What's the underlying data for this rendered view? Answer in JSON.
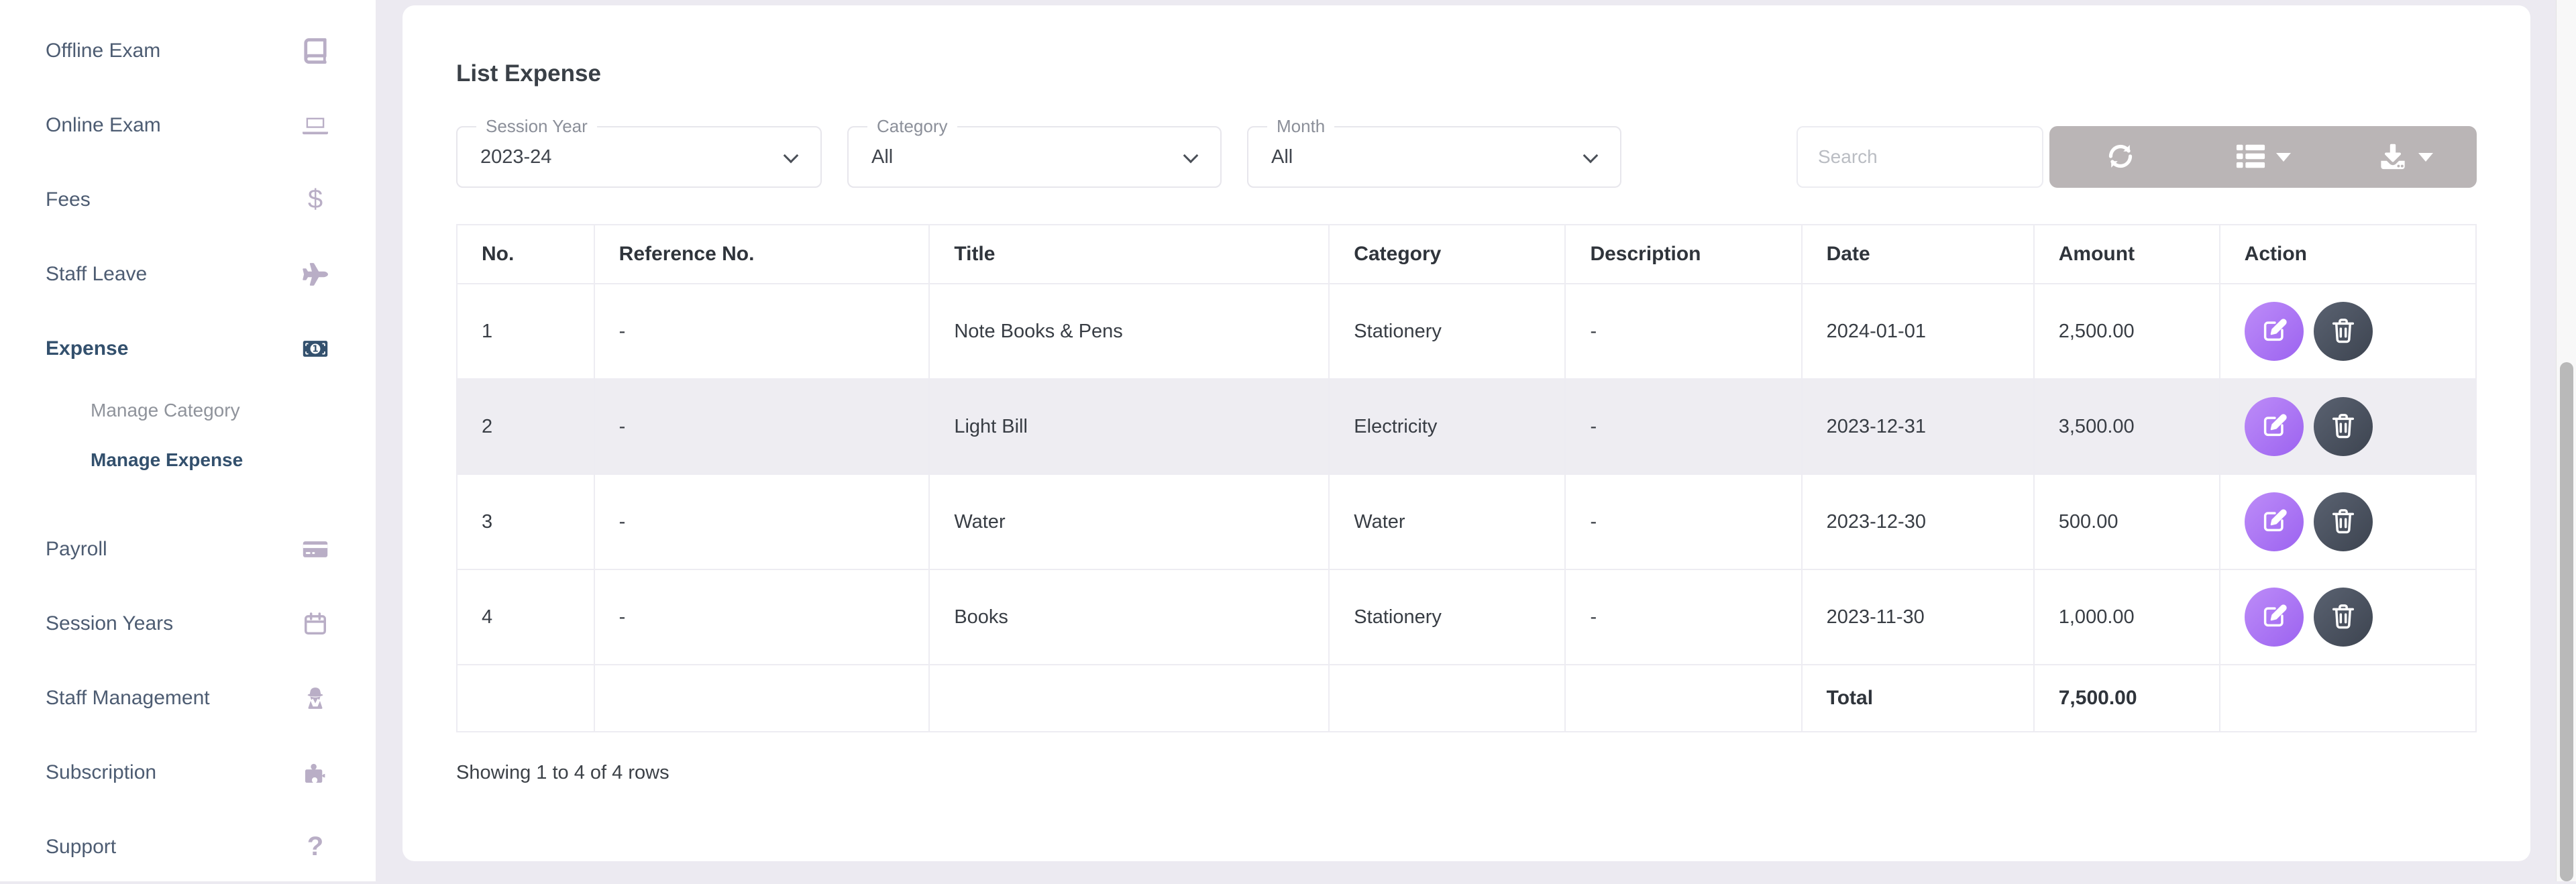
{
  "sidebar": {
    "items": [
      {
        "label": "Offline Exam",
        "icon": "book-icon",
        "active": false
      },
      {
        "label": "Online Exam",
        "icon": "laptop-icon",
        "active": false
      },
      {
        "label": "Fees",
        "icon": "dollar-icon",
        "active": false
      },
      {
        "label": "Staff Leave",
        "icon": "plane-icon",
        "active": false
      },
      {
        "label": "Expense",
        "icon": "money-bill-icon",
        "active": true,
        "children": [
          {
            "label": "Manage Category",
            "active": false
          },
          {
            "label": "Manage Expense",
            "active": true
          }
        ]
      },
      {
        "label": "Payroll",
        "icon": "credit-card-icon",
        "active": false
      },
      {
        "label": "Session Years",
        "icon": "calendar-icon",
        "active": false
      },
      {
        "label": "Staff Management",
        "icon": "user-secret-icon",
        "active": false
      },
      {
        "label": "Subscription",
        "icon": "puzzle-icon",
        "active": false
      },
      {
        "label": "Support",
        "icon": "question-icon",
        "active": false
      }
    ]
  },
  "main": {
    "title": "List Expense",
    "filters": [
      {
        "label": "Session Year",
        "value": "2023-24"
      },
      {
        "label": "Category",
        "value": "All"
      },
      {
        "label": "Month",
        "value": "All"
      }
    ],
    "search": {
      "placeholder": "Search"
    },
    "toolbar": [
      {
        "name": "refresh-button",
        "icon": "refresh-icon",
        "has_caret": false
      },
      {
        "name": "columns-button",
        "icon": "columns-icon",
        "has_caret": true
      },
      {
        "name": "export-button",
        "icon": "download-icon",
        "has_caret": true
      }
    ],
    "table": {
      "columns": [
        "No.",
        "Reference No.",
        "Title",
        "Category",
        "Description",
        "Date",
        "Amount",
        "Action"
      ],
      "rows": [
        {
          "no": "1",
          "reference": "-",
          "title": "Note Books & Pens",
          "category": "Stationery",
          "description": "-",
          "date": "2024-01-01",
          "amount": "2,500.00",
          "striped": false
        },
        {
          "no": "2",
          "reference": "-",
          "title": "Light Bill",
          "category": "Electricity",
          "description": "-",
          "date": "2023-12-31",
          "amount": "3,500.00",
          "striped": true
        },
        {
          "no": "3",
          "reference": "-",
          "title": "Water",
          "category": "Water",
          "description": "-",
          "date": "2023-12-30",
          "amount": "500.00",
          "striped": false
        },
        {
          "no": "4",
          "reference": "-",
          "title": "Books",
          "category": "Stationery",
          "description": "-",
          "date": "2023-11-30",
          "amount": "1,000.00",
          "striped": false
        }
      ],
      "total_label": "Total",
      "total_amount": "7,500.00"
    },
    "footer": "Showing 1 to 4 of 4 rows"
  },
  "colors": {
    "page_background": "#eceaf1",
    "card_background": "#ffffff",
    "sidebar_text": "#4d5c72",
    "sidebar_icon": "#b9aec6",
    "active_item": "#33506d",
    "muted_subitem": "#8f939b",
    "table_border": "#edecf2",
    "striped_row": "#eeedf2",
    "toolbar_gray": "#bab5b6",
    "edit_button_gradient": [
      "#bd8cf8",
      "#9c63f0"
    ],
    "delete_button_gradient": [
      "#5a6271",
      "#3d4450"
    ]
  }
}
